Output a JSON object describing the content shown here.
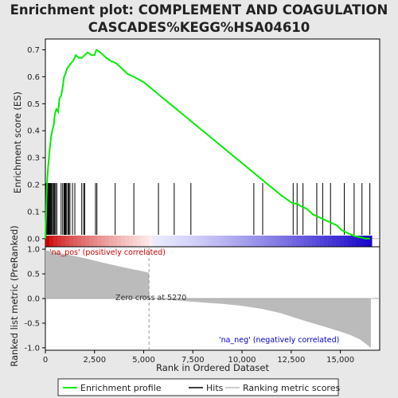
{
  "chart_data": {
    "type": "line",
    "title_line1": "Enrichment plot: COMPLEMENT AND COAGULATION",
    "title_line2": "CASCADES%KEGG%HSA04610",
    "top_panel": {
      "ylabel": "Enrichment score (ES)",
      "ylim": [
        -0.03,
        0.74
      ],
      "yticks": [
        "0.0",
        "0.1",
        "0.2",
        "0.3",
        "0.4",
        "0.5",
        "0.6",
        "0.7"
      ],
      "series": [
        {
          "name": "Enrichment profile",
          "color": "#00ee00",
          "x": [
            0,
            40,
            80,
            120,
            170,
            220,
            280,
            350,
            420,
            480,
            560,
            650,
            720,
            800,
            880,
            950,
            1020,
            1100,
            1200,
            1300,
            1420,
            1550,
            1700,
            1850,
            2000,
            2150,
            2350,
            2500,
            2600,
            2800,
            3100,
            3300,
            3600,
            3900,
            4200,
            4500,
            5000,
            5500,
            6000,
            6500,
            7000,
            7500,
            8000,
            8500,
            9000,
            9500,
            10000,
            10500,
            11000,
            11500,
            12000,
            12400,
            12600,
            12800,
            13000,
            13300,
            13600,
            13900,
            14200,
            14500,
            14800,
            15100,
            15400,
            15700,
            16000,
            16300,
            16500
          ],
          "y": [
            0.0,
            0.1,
            0.2,
            0.25,
            0.29,
            0.33,
            0.37,
            0.4,
            0.42,
            0.46,
            0.48,
            0.47,
            0.52,
            0.53,
            0.56,
            0.6,
            0.61,
            0.63,
            0.64,
            0.65,
            0.66,
            0.68,
            0.67,
            0.67,
            0.68,
            0.69,
            0.68,
            0.68,
            0.7,
            0.69,
            0.67,
            0.66,
            0.65,
            0.63,
            0.61,
            0.6,
            0.58,
            0.55,
            0.52,
            0.49,
            0.46,
            0.43,
            0.4,
            0.37,
            0.34,
            0.31,
            0.28,
            0.25,
            0.22,
            0.19,
            0.16,
            0.14,
            0.13,
            0.13,
            0.12,
            0.11,
            0.09,
            0.08,
            0.07,
            0.06,
            0.05,
            0.03,
            0.02,
            0.01,
            0.005,
            0.0,
            0.0
          ]
        }
      ],
      "hits": [
        20,
        60,
        100,
        140,
        170,
        200,
        240,
        280,
        320,
        370,
        420,
        470,
        520,
        580,
        800,
        880,
        950,
        990,
        1030,
        1080,
        1150,
        1200,
        1250,
        1380,
        1500,
        1850,
        1950,
        2000,
        2550,
        2620,
        3550,
        4500,
        5750,
        6550,
        7400,
        10600,
        11050,
        12600,
        12800,
        13100,
        13800,
        14100,
        14500,
        15200,
        15700,
        16100,
        16500
      ]
    },
    "bottom_panel": {
      "ylabel": "Ranked list metric (PreRanked)",
      "ylim": [
        -1.05,
        1.05
      ],
      "yticks": [
        "1.0",
        "0.5",
        "0.0",
        "-0.5",
        "-1.0"
      ],
      "xlabel": "Rank in Ordered Dataset",
      "xlim": [
        0,
        17000
      ],
      "xticks": [
        "0",
        "2,500",
        "5,000",
        "7,500",
        "10,000",
        "12,500",
        "15,000"
      ],
      "zero_cross_rank": 5270,
      "zero_cross_label": "Zero cross at 5270",
      "pos_label": "'na_pos' (positively correlated)",
      "neg_label": "'na_neg' (negatively correlated)",
      "metric_x": [
        0,
        50,
        300,
        1000,
        2000,
        3000,
        4000,
        5000,
        5270,
        6000,
        7000,
        8000,
        9000,
        10000,
        11000,
        12000,
        13000,
        14000,
        15000,
        15500,
        16000,
        16300,
        16550
      ],
      "metric_y": [
        1.0,
        0.98,
        0.95,
        0.9,
        0.82,
        0.72,
        0.63,
        0.55,
        0.0,
        -0.02,
        -0.05,
        -0.08,
        -0.11,
        -0.15,
        -0.21,
        -0.3,
        -0.43,
        -0.55,
        -0.67,
        -0.74,
        -0.83,
        -0.92,
        -1.0
      ]
    },
    "legend": {
      "items": [
        "Enrichment profile",
        "Hits",
        "Ranking metric scores"
      ],
      "colors": [
        "#00ee00",
        "#000000",
        "#bbbbbb"
      ]
    }
  }
}
